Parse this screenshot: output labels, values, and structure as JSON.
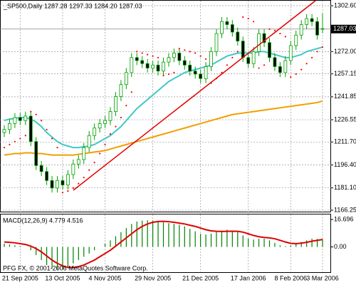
{
  "chart_data": [
    {
      "type": "candlestick",
      "title": "_SP500,Daily  1287.28 1297.33 1284.20 1287.03",
      "categories": [
        null,
        null,
        null,
        "21 Sep 2005",
        null,
        null,
        null,
        null,
        null,
        null,
        null,
        "13 Oct 2005",
        null,
        null,
        null,
        null,
        null,
        null,
        null,
        "4 Nov 2005",
        null,
        null,
        null,
        null,
        null,
        null,
        null,
        null,
        "29 Nov 2005",
        null,
        null,
        null,
        null,
        null,
        null,
        null,
        null,
        "21 Dec 2005",
        null,
        null,
        null,
        null,
        null,
        null,
        null,
        null,
        "17 Jan 2006",
        null,
        null,
        null,
        null,
        null,
        null,
        null,
        "8 Feb 2006",
        null,
        null,
        null,
        null,
        null,
        "3 Mar 2006"
      ],
      "open": [
        1218,
        1220,
        1224,
        1228,
        1226,
        1229,
        1212,
        1196,
        1192,
        1186,
        1181,
        1186,
        1183,
        1190,
        1197,
        1200,
        1208,
        1216,
        1221,
        1224,
        1226,
        1232,
        1242,
        1250,
        1258,
        1268,
        1266,
        1264,
        1261,
        1263,
        1259,
        1265,
        1268,
        1271,
        1266,
        1263,
        1259,
        1257,
        1254,
        1262,
        1272,
        1284,
        1292,
        1290,
        1285,
        1279,
        1268,
        1264,
        1272,
        1284,
        1278,
        1268,
        1262,
        1258,
        1266,
        1276,
        1283,
        1290,
        1294,
        1292,
        1287.28
      ],
      "high": [
        1223,
        1227,
        1231,
        1231,
        1232,
        1232,
        1215,
        1199,
        1195,
        1189,
        1189,
        1189,
        1193,
        1200,
        1203,
        1211,
        1219,
        1224,
        1227,
        1229,
        1235,
        1245,
        1253,
        1261,
        1271,
        1271,
        1269,
        1267,
        1266,
        1266,
        1268,
        1271,
        1274,
        1274,
        1269,
        1266,
        1262,
        1260,
        1265,
        1275,
        1287,
        1295,
        1295,
        1293,
        1288,
        1282,
        1271,
        1275,
        1287,
        1287,
        1281,
        1271,
        1265,
        1269,
        1279,
        1286,
        1293,
        1297,
        1297,
        1295,
        1297.33
      ],
      "low": [
        1215,
        1217,
        1221,
        1223,
        1223,
        1209,
        1193,
        1189,
        1183,
        1178,
        1178,
        1180,
        1180,
        1187,
        1194,
        1197,
        1205,
        1213,
        1218,
        1221,
        1223,
        1229,
        1239,
        1247,
        1255,
        1263,
        1261,
        1258,
        1258,
        1256,
        1256,
        1262,
        1265,
        1263,
        1260,
        1256,
        1254,
        1251,
        1251,
        1259,
        1269,
        1281,
        1287,
        1282,
        1276,
        1265,
        1261,
        1261,
        1269,
        1275,
        1265,
        1259,
        1255,
        1255,
        1263,
        1273,
        1280,
        1287,
        1289,
        1280,
        1284.2
      ],
      "close": [
        1220,
        1224,
        1228,
        1226,
        1229,
        1212,
        1196,
        1192,
        1186,
        1181,
        1186,
        1183,
        1190,
        1197,
        1200,
        1208,
        1216,
        1221,
        1224,
        1226,
        1232,
        1242,
        1250,
        1258,
        1268,
        1266,
        1264,
        1261,
        1263,
        1259,
        1265,
        1268,
        1271,
        1266,
        1263,
        1259,
        1257,
        1254,
        1262,
        1272,
        1284,
        1292,
        1290,
        1285,
        1279,
        1268,
        1264,
        1272,
        1284,
        1278,
        1268,
        1262,
        1258,
        1266,
        1276,
        1283,
        1290,
        1294,
        1292,
        1283,
        1287.03
      ],
      "up_color": "#00a000",
      "down_color": "#000000",
      "series": [
        {
          "color": "#40c8c8",
          "values": [
            1226,
            1227,
            1227.5,
            1228,
            1228,
            1227,
            1225,
            1222,
            1218,
            1215,
            1212,
            1210,
            1209,
            1208,
            1208,
            1208.5,
            1209,
            1210,
            1212,
            1214,
            1216,
            1219,
            1222,
            1226,
            1230,
            1234,
            1237,
            1240,
            1243,
            1246,
            1249,
            1252,
            1254,
            1256,
            1258,
            1259,
            1260,
            1261,
            1262,
            1263,
            1265,
            1267,
            1269,
            1270,
            1271,
            1271,
            1271,
            1271,
            1272,
            1272,
            1271,
            1270,
            1269,
            1268,
            1268,
            1269,
            1270,
            1272,
            1273,
            1274,
            1275
          ]
        },
        {
          "color": "#f0a000",
          "values": [
            1203,
            1203.5,
            1204,
            1204,
            1204.5,
            1204.5,
            1204,
            1204,
            1203.5,
            1203,
            1203,
            1203,
            1203,
            1203,
            1203.5,
            1204,
            1204.5,
            1205,
            1205.5,
            1206,
            1207,
            1208,
            1209,
            1210,
            1211,
            1212,
            1213,
            1214,
            1215,
            1216,
            1217,
            1218,
            1219,
            1220,
            1221,
            1222,
            1223,
            1224,
            1225,
            1226,
            1227,
            1228,
            1229,
            1230,
            1230.5,
            1231,
            1231.5,
            1232,
            1232.5,
            1233,
            1233.5,
            1234,
            1234.5,
            1235,
            1235.5,
            1236,
            1236.5,
            1237,
            1237.5,
            1238,
            1239
          ]
        }
      ],
      "sar": {
        "color": "#ff0000",
        "values": [
          1208,
          1210,
          1212,
          1214,
          1216,
          1232,
          1230,
          1226,
          1220,
          1214,
          1208,
          1178,
          1179,
          1181,
          1184,
          1188,
          1193,
          1198,
          1204,
          1210,
          1217,
          1222,
          1228,
          1236,
          1245,
          1272,
          1271,
          1270,
          1269,
          1268,
          1256,
          1257,
          1258,
          1274,
          1273,
          1272,
          1271,
          1269,
          1267,
          1251,
          1254,
          1258,
          1263,
          1268,
          1272,
          1295,
          1294,
          1292,
          1261,
          1263,
          1287,
          1286,
          1284,
          1282,
          1255,
          1257,
          1260,
          1264,
          1268,
          1272,
          1275
        ]
      },
      "price_line": 1287.03,
      "ylim": [
        1164.8,
        1306.4
      ],
      "yticks": [
        {
          "value": 1302.6,
          "label": "1302.60"
        },
        {
          "value": 1272,
          "label": "1272.00"
        },
        1257.15,
        1241.85,
        1226.55,
        {
          "value": 1211.7,
          "label": "1211.70"
        },
        {
          "value": 1196.4,
          "label": "1196.40"
        },
        {
          "value": 1181.1,
          "label": "1181.10"
        },
        1166.25
      ],
      "grid": true
    },
    {
      "type": "macd",
      "title": "MACD(12,26,9) 4.779 4.516",
      "histogram": {
        "color": "#008000",
        "values": [
          2,
          1.5,
          1,
          0.5,
          0,
          -2,
          -5,
          -8,
          -11,
          -13,
          -14,
          -13.5,
          -12,
          -10,
          -8,
          -6,
          -4,
          -2,
          0,
          2,
          4,
          6.5,
          9,
          11.5,
          14,
          15.5,
          16,
          16.2,
          16,
          15.5,
          15,
          14.5,
          14,
          13.5,
          12.5,
          11,
          9.5,
          8,
          7.5,
          8,
          9,
          10,
          10.5,
          10,
          9,
          7,
          5,
          4.5,
          5,
          5,
          4,
          2.5,
          1,
          0.5,
          1,
          2,
          3,
          4,
          5,
          4.9,
          4.779
        ]
      },
      "signal": {
        "color": "#e00000",
        "values": [
          3,
          2.8,
          2.5,
          2,
          1.5,
          0.5,
          -1,
          -3,
          -5.5,
          -8,
          -10,
          -11.5,
          -12.5,
          -12.5,
          -12,
          -11,
          -9.5,
          -8,
          -6,
          -4,
          -2,
          0.5,
          3,
          5.5,
          8,
          10.5,
          12.5,
          14,
          15,
          15.5,
          15.6,
          15.4,
          15,
          14.5,
          14,
          13.2,
          12.5,
          11.5,
          10.5,
          9.8,
          9.5,
          9.4,
          9.5,
          9.6,
          9.5,
          9,
          8,
          7,
          6.2,
          5.8,
          5.5,
          5,
          4,
          3,
          2.2,
          2,
          2.3,
          2.8,
          3.5,
          4,
          4.516
        ]
      },
      "ylim": [
        -15.8,
        20.2
      ],
      "yticks": [
        16.696,
        {
          "value": 0,
          "label": "0.00"
        }
      ],
      "watermark": "PFG FX, © 2001-2006 MetaQuotes Software Corp."
    }
  ]
}
